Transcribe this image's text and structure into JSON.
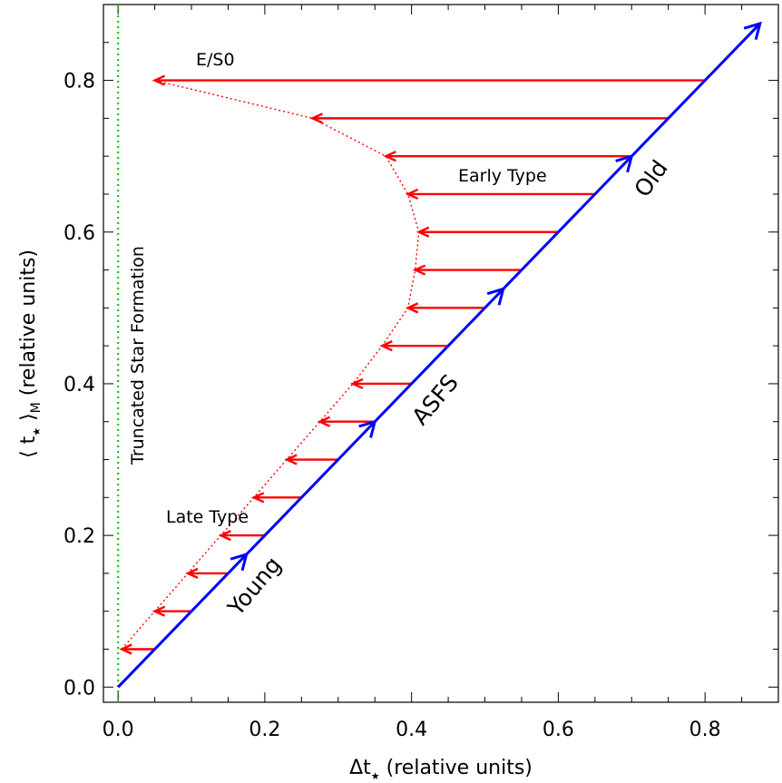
{
  "chart_data": {
    "type": "line",
    "xlabel": "Δt",
    "xlabel_sub": "★",
    "xlabel_rest": " (relative units)",
    "ylabel": "⟨ t",
    "ylabel_sub": "★",
    "ylabel_mid": " ⟩",
    "ylabel_sub2": "M",
    "ylabel_rest": " (relative units)",
    "xlim": [
      -0.02,
      0.9
    ],
    "ylim": [
      -0.02,
      0.9
    ],
    "xticks": [
      "0.0",
      "0.2",
      "0.4",
      "0.6",
      "0.8"
    ],
    "yticks": [
      "0.0",
      "0.2",
      "0.4",
      "0.6",
      "0.8"
    ],
    "grid": false,
    "colors": {
      "asfs": "#0000ff",
      "arrows": "#ff0000",
      "truncated": "#00cc00",
      "axes": "#000000"
    },
    "asfs_line": {
      "x": [
        0.0,
        0.875
      ],
      "y": [
        0.0,
        0.875
      ],
      "direction_marks": [
        0.175,
        0.35,
        0.525,
        0.7
      ]
    },
    "truncated_line": {
      "x": 0.0
    },
    "arrows": [
      {
        "y": 0.05,
        "from_x": 0.05,
        "to_x": 0.005
      },
      {
        "y": 0.1,
        "from_x": 0.1,
        "to_x": 0.05
      },
      {
        "y": 0.15,
        "from_x": 0.15,
        "to_x": 0.095
      },
      {
        "y": 0.2,
        "from_x": 0.2,
        "to_x": 0.14
      },
      {
        "y": 0.25,
        "from_x": 0.25,
        "to_x": 0.185
      },
      {
        "y": 0.3,
        "from_x": 0.3,
        "to_x": 0.23
      },
      {
        "y": 0.35,
        "from_x": 0.35,
        "to_x": 0.275
      },
      {
        "y": 0.4,
        "from_x": 0.4,
        "to_x": 0.32
      },
      {
        "y": 0.45,
        "from_x": 0.45,
        "to_x": 0.36
      },
      {
        "y": 0.5,
        "from_x": 0.5,
        "to_x": 0.395
      },
      {
        "y": 0.55,
        "from_x": 0.55,
        "to_x": 0.405
      },
      {
        "y": 0.6,
        "from_x": 0.6,
        "to_x": 0.41
      },
      {
        "y": 0.65,
        "from_x": 0.65,
        "to_x": 0.395
      },
      {
        "y": 0.7,
        "from_x": 0.7,
        "to_x": 0.365
      },
      {
        "y": 0.75,
        "from_x": 0.75,
        "to_x": 0.265
      },
      {
        "y": 0.8,
        "from_x": 0.8,
        "to_x": 0.05
      }
    ],
    "envelope": {
      "x": [
        0.005,
        0.05,
        0.095,
        0.14,
        0.185,
        0.23,
        0.275,
        0.32,
        0.36,
        0.395,
        0.405,
        0.41,
        0.395,
        0.365,
        0.265,
        0.05
      ],
      "y": [
        0.05,
        0.1,
        0.15,
        0.2,
        0.25,
        0.3,
        0.35,
        0.4,
        0.45,
        0.5,
        0.55,
        0.6,
        0.65,
        0.7,
        0.75,
        0.8
      ]
    },
    "annotations": {
      "e_s0": "E/S0",
      "early_type": "Early Type",
      "late_type": "Late Type",
      "truncated": "Truncated Star Formation",
      "old": "Old",
      "asfs": "ASFS",
      "young": "Young"
    }
  }
}
